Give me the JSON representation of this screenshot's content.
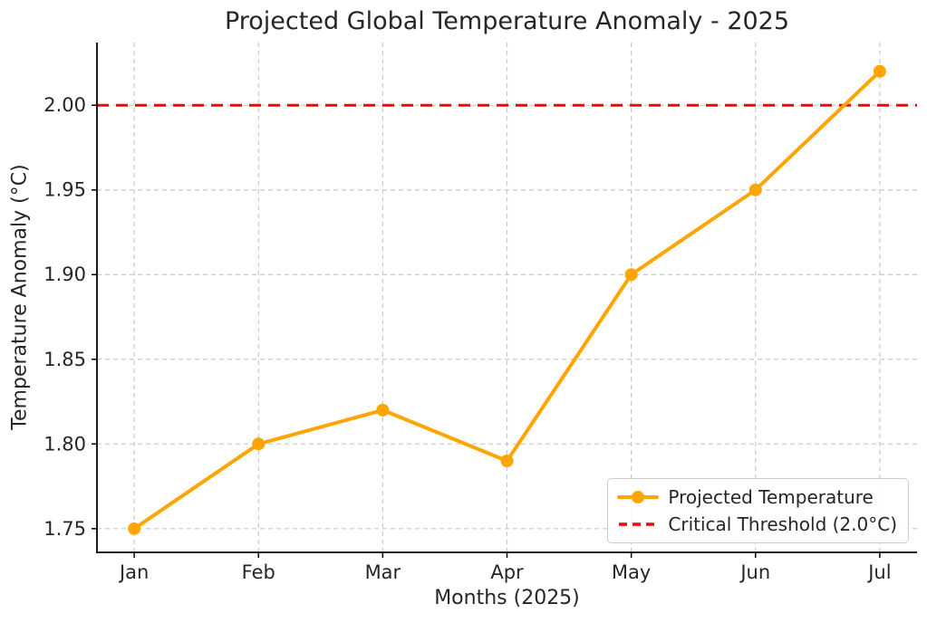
{
  "chart_data": {
    "type": "line",
    "title": "Projected Global Temperature Anomaly - 2025",
    "xlabel": "Months (2025)",
    "ylabel": "Temperature Anomaly (°C)",
    "categories": [
      "Jan",
      "Feb",
      "Mar",
      "Apr",
      "May",
      "Jun",
      "Jul"
    ],
    "series": [
      {
        "name": "Projected Temperature",
        "values": [
          1.75,
          1.8,
          1.82,
          1.79,
          1.9,
          1.95,
          2.02
        ],
        "color": "#FFA500",
        "marker": "circle",
        "line_style": "solid"
      }
    ],
    "threshold": {
      "label": "Critical Threshold (2.0°C)",
      "value": 2.0,
      "color": "#FF0000",
      "line_style": "dashed"
    },
    "yticks": [
      1.75,
      1.8,
      1.85,
      1.9,
      1.95,
      2.0
    ],
    "ylim": [
      1.736,
      2.037
    ],
    "xlim": [
      -0.3,
      6.3
    ],
    "grid": true,
    "grid_style": "dashed",
    "grid_color": "#c9c9c9",
    "axis_color": "#000000",
    "text_color": "#262626",
    "legend_position": "lower right"
  }
}
